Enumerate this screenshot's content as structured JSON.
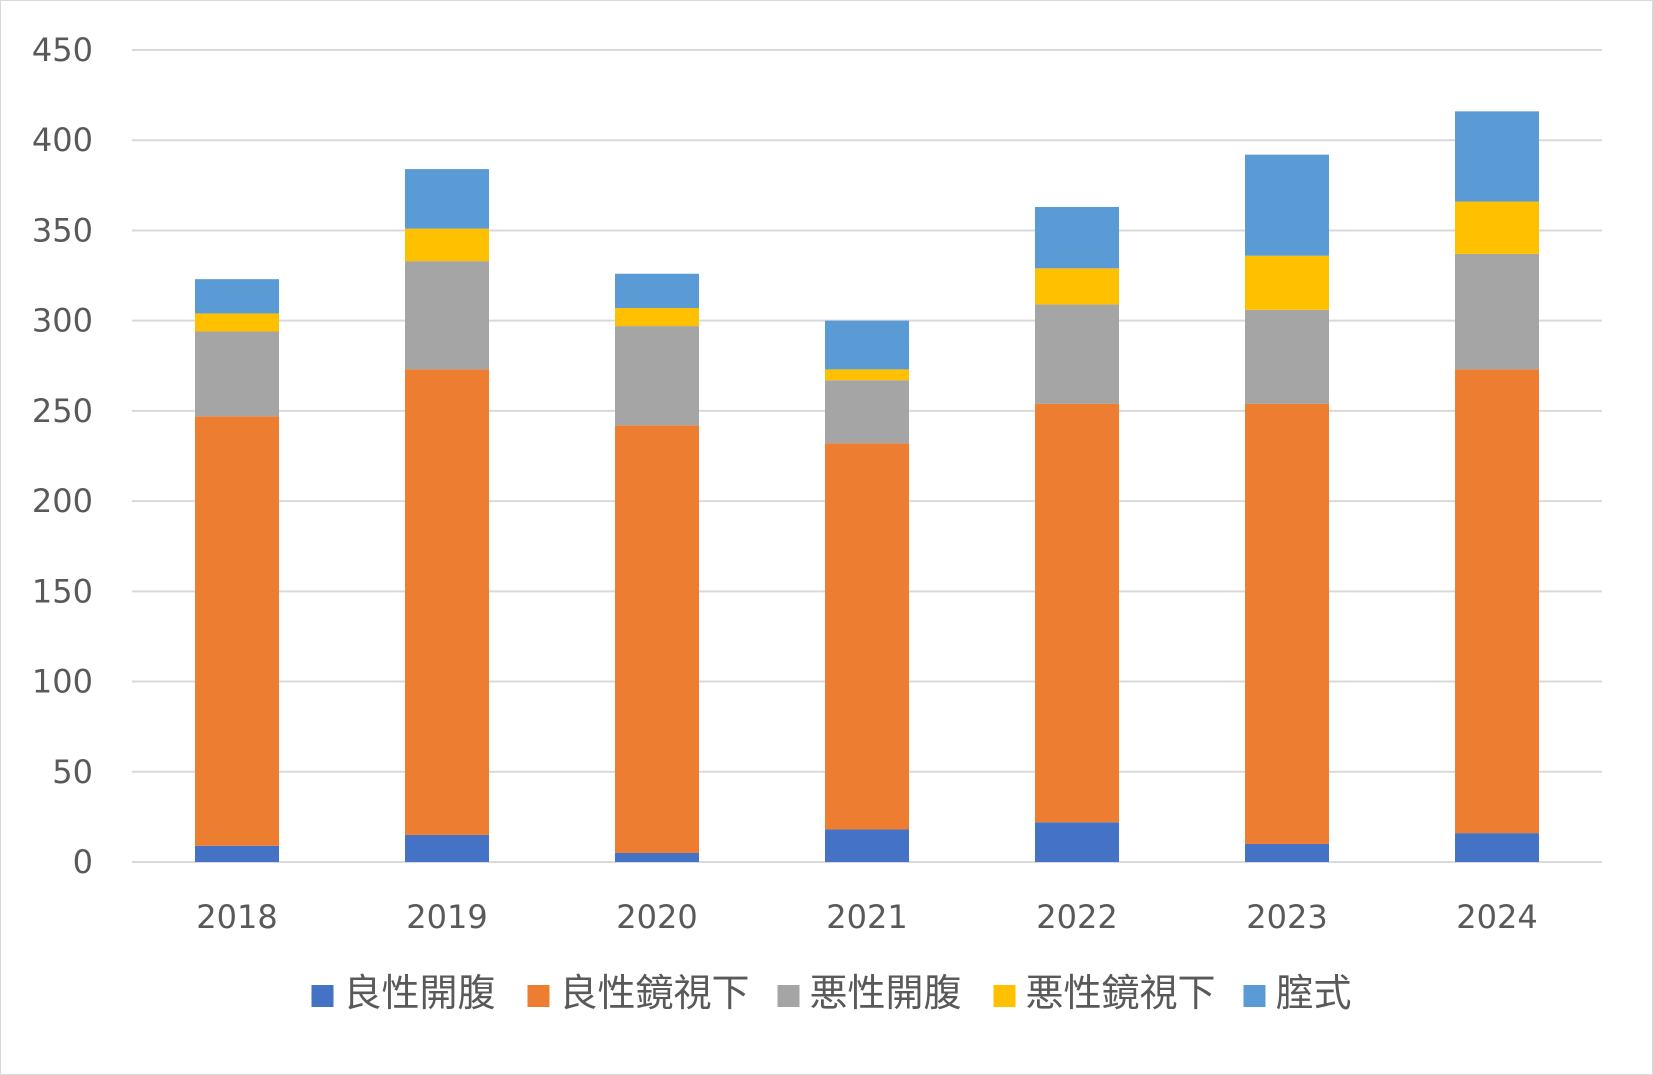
{
  "chart_data": {
    "type": "bar",
    "stacked": true,
    "categories": [
      "2018",
      "2019",
      "2020",
      "2021",
      "2022",
      "2023",
      "2024"
    ],
    "series": [
      {
        "name": "良性開腹",
        "color": "#4472C4",
        "values": [
          9,
          15,
          5,
          18,
          22,
          10,
          16
        ]
      },
      {
        "name": "良性鏡視下",
        "color": "#ED7D31",
        "values": [
          238,
          258,
          237,
          214,
          232,
          244,
          257
        ]
      },
      {
        "name": "悪性開腹",
        "color": "#A5A5A5",
        "values": [
          47,
          60,
          55,
          35,
          55,
          52,
          64
        ]
      },
      {
        "name": "悪性鏡視下",
        "color": "#FFC000",
        "values": [
          10,
          18,
          10,
          6,
          20,
          30,
          29
        ]
      },
      {
        "name": "腟式",
        "color": "#5B9BD5",
        "values": [
          19,
          33,
          19,
          27,
          34,
          56,
          50
        ]
      }
    ],
    "yticks": [
      "0",
      "50",
      "100",
      "150",
      "200",
      "250",
      "300",
      "350",
      "400",
      "450"
    ],
    "ylim": [
      0,
      450
    ],
    "grid": true,
    "legend_position": "bottom"
  }
}
